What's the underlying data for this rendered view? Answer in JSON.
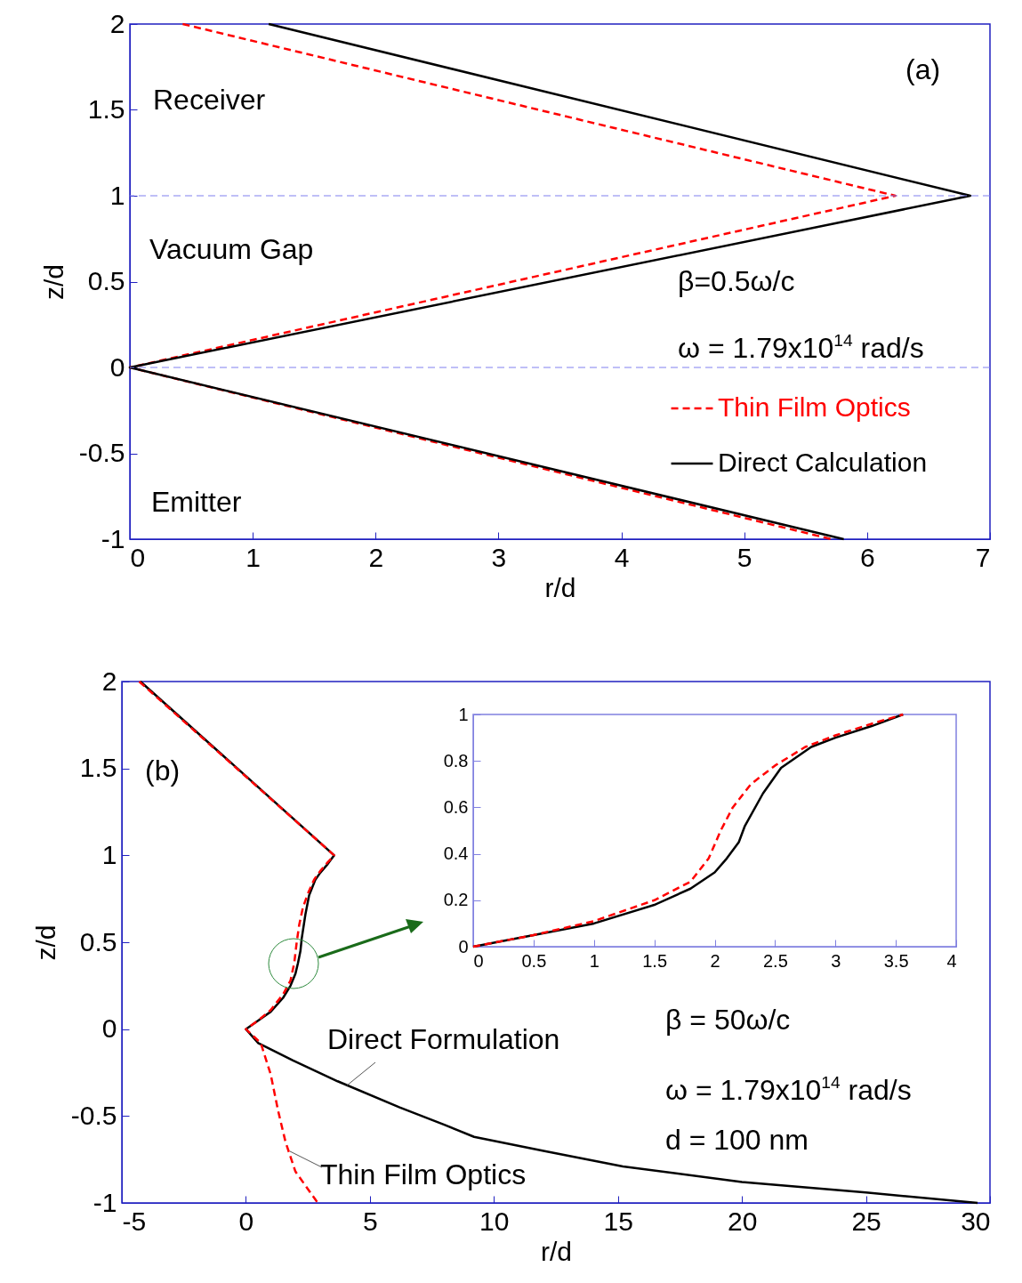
{
  "chart_data": [
    {
      "type": "line",
      "xlabel": "r/d",
      "ylabel": "z/d",
      "xlim": [
        0,
        7
      ],
      "xticks": [
        0,
        1,
        2,
        3,
        4,
        5,
        6,
        7
      ],
      "ylim": [
        -1,
        2
      ],
      "yticks": [
        -1,
        -0.5,
        0,
        0.5,
        1,
        1.5,
        2
      ],
      "legend": "bottom right",
      "annotations": [
        "(a)",
        "Receiver",
        "Vacuum Gap",
        "Emitter",
        "β=0.5ω/c",
        "ω = 1.79x10$^{14}$ rad/s"
      ],
      "ref_lines": [
        {
          "axis": "y",
          "value": 0,
          "color": "#8080f0",
          "line_style": "dashed"
        },
        {
          "axis": "y",
          "value": 1,
          "color": "#8080f0",
          "line_style": "dashed"
        }
      ],
      "series": [
        {
          "name": "Thin Film Optics",
          "color": "#ff0000",
          "line_style": "dashed",
          "x": [
            0.43,
            6.23,
            0,
            5.71
          ],
          "values": [
            2,
            1,
            0,
            -1
          ]
        },
        {
          "name": "Direct Calculation",
          "color": "#000000",
          "line_style": "solid",
          "x": [
            1.13,
            6.84,
            0,
            5.81
          ],
          "values": [
            2,
            1,
            0,
            -1
          ]
        }
      ]
    },
    {
      "type": "line",
      "xlabel": "r/d",
      "ylabel": "z/d",
      "xlim": [
        -5,
        30
      ],
      "xticks": [
        -5,
        0,
        5,
        10,
        15,
        20,
        25,
        30
      ],
      "ylim": [
        -1,
        2
      ],
      "yticks": [
        -1,
        -0.5,
        0,
        0.5,
        1,
        1.5,
        2
      ],
      "annotations": [
        "(b)",
        "β = 50ω/c",
        "ω = 1.79x10$^{14}$ rad/s",
        "d = 100 nm"
      ],
      "series": [
        {
          "name": "Direct Formulation",
          "color": "#000000",
          "line_style": "solid",
          "x": [
            -4.25,
            3.56,
            3.3,
            3,
            2.8,
            2.55,
            2.4,
            2.25,
            2.2,
            2.1,
            2,
            1.8,
            1.5,
            1,
            0.5,
            0,
            0.5,
            1.9,
            3.7,
            6.2,
            8,
            9.2,
            12,
            15.2,
            20,
            25,
            29.5
          ],
          "values": [
            2,
            1,
            0.95,
            0.9,
            0.86,
            0.77,
            0.66,
            0.52,
            0.45,
            0.38,
            0.32,
            0.25,
            0.18,
            0.1,
            0.05,
            0,
            -0.08,
            -0.18,
            -0.3,
            -0.45,
            -0.55,
            -0.62,
            -0.7,
            -0.79,
            -0.88,
            -0.94,
            -1
          ]
        },
        {
          "name": "Thin Film Optics",
          "color": "#ff0000",
          "line_style": "dashed",
          "x": [
            -4.3,
            3.56,
            3.3,
            3,
            2.75,
            2.5,
            2.3,
            2.15,
            2.05,
            1.95,
            1.8,
            1.5,
            1,
            0.5,
            0,
            0.6,
            1,
            1.3,
            1.6,
            2,
            2.9
          ],
          "values": [
            2,
            1,
            0.96,
            0.91,
            0.86,
            0.78,
            0.7,
            0.6,
            0.5,
            0.38,
            0.28,
            0.2,
            0.11,
            0.05,
            0,
            -0.08,
            -0.26,
            -0.47,
            -0.65,
            -0.82,
            -1
          ]
        }
      ]
    },
    {
      "type": "line",
      "xlim": [
        0,
        4
      ],
      "xticks": [
        0,
        0.5,
        1,
        1.5,
        2,
        2.5,
        3,
        3.5,
        4
      ],
      "ylim": [
        0,
        1
      ],
      "yticks": [
        0,
        0.2,
        0.4,
        0.6,
        0.8,
        1
      ],
      "series": [
        {
          "color": "#000000",
          "line_style": "solid",
          "x": [
            0,
            0.5,
            1,
            1.5,
            1.8,
            2,
            2.1,
            2.2,
            2.25,
            2.4,
            2.55,
            2.8,
            3,
            3.3,
            3.56
          ],
          "values": [
            0,
            0.05,
            0.1,
            0.18,
            0.25,
            0.32,
            0.38,
            0.45,
            0.52,
            0.66,
            0.77,
            0.86,
            0.9,
            0.95,
            1
          ]
        },
        {
          "color": "#ff0000",
          "line_style": "dashed",
          "x": [
            0,
            0.5,
            1,
            1.5,
            1.8,
            1.95,
            2.05,
            2.15,
            2.3,
            2.5,
            2.75,
            3,
            3.3,
            3.56
          ],
          "values": [
            0,
            0.05,
            0.11,
            0.2,
            0.28,
            0.38,
            0.5,
            0.6,
            0.7,
            0.78,
            0.86,
            0.91,
            0.96,
            1
          ]
        }
      ]
    }
  ]
}
